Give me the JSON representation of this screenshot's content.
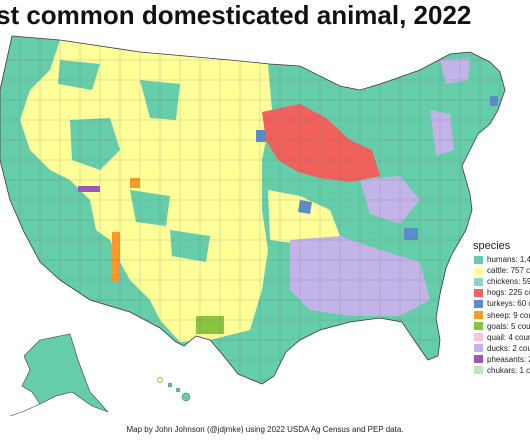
{
  "title": "st common domesticated animal, 2022",
  "legend": {
    "title": "species",
    "items": [
      {
        "label": "humans: 1,4",
        "color": "#66cdaa"
      },
      {
        "label": "cattle: 757 c",
        "color": "#ffff99"
      },
      {
        "label": "chickens: 59",
        "color": "#8dd3c7"
      },
      {
        "label": "hogs: 225 co",
        "color": "#f0605d"
      },
      {
        "label": "turkeys: 60 c",
        "color": "#5b8dc9"
      },
      {
        "label": "sheep: 9 cou",
        "color": "#fb9a29"
      },
      {
        "label": "goats: 5 cou",
        "color": "#8bc43f"
      },
      {
        "label": "quail: 4 coun",
        "color": "#f7c5d8"
      },
      {
        "label": "ducks: 2 cou",
        "color": "#c2b3e8"
      },
      {
        "label": "pheasants: 2",
        "color": "#9e56b8"
      },
      {
        "label": "chukars: 1 c",
        "color": "#bde6bd"
      }
    ]
  },
  "caption": "Map by John Johnson (@jdjmke) using 2022 USDA Ag Census and PEP data."
}
